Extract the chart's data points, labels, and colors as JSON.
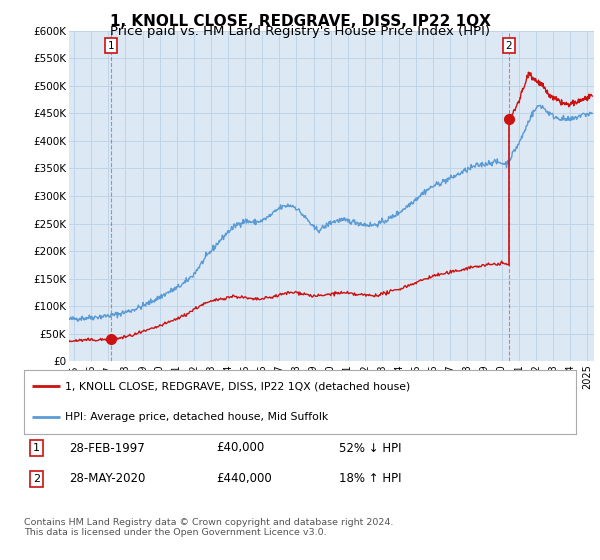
{
  "title": "1, KNOLL CLOSE, REDGRAVE, DISS, IP22 1QX",
  "subtitle": "Price paid vs. HM Land Registry's House Price Index (HPI)",
  "ylim": [
    0,
    600000
  ],
  "xlim_start": 1994.7,
  "xlim_end": 2025.4,
  "yticks": [
    0,
    50000,
    100000,
    150000,
    200000,
    250000,
    300000,
    350000,
    400000,
    450000,
    500000,
    550000,
    600000
  ],
  "ytick_labels": [
    "£0",
    "£50K",
    "£100K",
    "£150K",
    "£200K",
    "£250K",
    "£300K",
    "£350K",
    "£400K",
    "£450K",
    "£500K",
    "£550K",
    "£600K"
  ],
  "xticks": [
    1995,
    1996,
    1997,
    1998,
    1999,
    2000,
    2001,
    2002,
    2003,
    2004,
    2005,
    2006,
    2007,
    2008,
    2009,
    2010,
    2011,
    2012,
    2013,
    2014,
    2015,
    2016,
    2017,
    2018,
    2019,
    2020,
    2021,
    2022,
    2023,
    2024,
    2025
  ],
  "background_color": "#dce9f5",
  "grid_color": "#c0d4e8",
  "hpi_color": "#5b9bd5",
  "price_color": "#cc1111",
  "annotation_box_color": "#cc1111",
  "sale1_date": 1997.16,
  "sale1_price": 40000,
  "sale2_date": 2020.41,
  "sale2_price": 440000,
  "legend_entry1": "1, KNOLL CLOSE, REDGRAVE, DISS, IP22 1QX (detached house)",
  "legend_entry2": "HPI: Average price, detached house, Mid Suffolk",
  "footer": "Contains HM Land Registry data © Crown copyright and database right 2024.\nThis data is licensed under the Open Government Licence v3.0.",
  "title_fontsize": 11,
  "subtitle_fontsize": 9.5,
  "hpi_anchors": [
    [
      1994.7,
      76000
    ],
    [
      1995.0,
      77000
    ],
    [
      1995.5,
      78000
    ],
    [
      1996.0,
      79500
    ],
    [
      1996.5,
      81000
    ],
    [
      1997.0,
      82500
    ],
    [
      1997.5,
      85000
    ],
    [
      1998.0,
      89000
    ],
    [
      1998.5,
      94000
    ],
    [
      1999.0,
      100000
    ],
    [
      1999.5,
      108000
    ],
    [
      2000.0,
      116000
    ],
    [
      2000.5,
      125000
    ],
    [
      2001.0,
      133000
    ],
    [
      2001.5,
      143000
    ],
    [
      2002.0,
      158000
    ],
    [
      2002.5,
      180000
    ],
    [
      2003.0,
      200000
    ],
    [
      2003.5,
      218000
    ],
    [
      2004.0,
      235000
    ],
    [
      2004.5,
      248000
    ],
    [
      2005.0,
      255000
    ],
    [
      2005.5,
      252000
    ],
    [
      2006.0,
      255000
    ],
    [
      2006.5,
      265000
    ],
    [
      2007.0,
      278000
    ],
    [
      2007.5,
      283000
    ],
    [
      2007.8,
      282000
    ],
    [
      2008.0,
      278000
    ],
    [
      2008.3,
      268000
    ],
    [
      2008.7,
      255000
    ],
    [
      2009.0,
      242000
    ],
    [
      2009.3,
      238000
    ],
    [
      2009.7,
      245000
    ],
    [
      2010.0,
      252000
    ],
    [
      2010.5,
      256000
    ],
    [
      2011.0,
      255000
    ],
    [
      2011.5,
      252000
    ],
    [
      2012.0,
      248000
    ],
    [
      2012.5,
      247000
    ],
    [
      2013.0,
      252000
    ],
    [
      2013.5,
      260000
    ],
    [
      2014.0,
      270000
    ],
    [
      2014.5,
      282000
    ],
    [
      2015.0,
      295000
    ],
    [
      2015.5,
      308000
    ],
    [
      2016.0,
      318000
    ],
    [
      2016.5,
      325000
    ],
    [
      2017.0,
      332000
    ],
    [
      2017.5,
      340000
    ],
    [
      2018.0,
      348000
    ],
    [
      2018.5,
      355000
    ],
    [
      2019.0,
      358000
    ],
    [
      2019.5,
      362000
    ],
    [
      2020.0,
      360000
    ],
    [
      2020.3,
      358000
    ],
    [
      2020.5,
      368000
    ],
    [
      2020.7,
      380000
    ],
    [
      2021.0,
      395000
    ],
    [
      2021.3,
      415000
    ],
    [
      2021.5,
      430000
    ],
    [
      2021.7,
      445000
    ],
    [
      2022.0,
      458000
    ],
    [
      2022.2,
      465000
    ],
    [
      2022.4,
      462000
    ],
    [
      2022.6,
      455000
    ],
    [
      2022.8,
      450000
    ],
    [
      2023.0,
      445000
    ],
    [
      2023.3,
      442000
    ],
    [
      2023.6,
      440000
    ],
    [
      2023.9,
      438000
    ],
    [
      2024.2,
      440000
    ],
    [
      2024.5,
      445000
    ],
    [
      2024.8,
      448000
    ],
    [
      2025.3,
      450000
    ]
  ],
  "price_anchors_seg1": [
    [
      1994.7,
      36000
    ],
    [
      1995.0,
      37000
    ],
    [
      1995.5,
      38000
    ],
    [
      1996.0,
      38500
    ],
    [
      1996.5,
      39000
    ],
    [
      1997.0,
      39500
    ],
    [
      1997.16,
      40000
    ],
    [
      1997.5,
      41000
    ],
    [
      1998.0,
      44000
    ],
    [
      1998.5,
      48000
    ],
    [
      1999.0,
      53000
    ],
    [
      1999.5,
      58000
    ],
    [
      2000.0,
      64000
    ],
    [
      2000.5,
      70000
    ],
    [
      2001.0,
      77000
    ],
    [
      2001.5,
      84000
    ],
    [
      2002.0,
      94000
    ],
    [
      2002.5,
      103000
    ],
    [
      2003.0,
      108000
    ],
    [
      2003.5,
      113000
    ],
    [
      2004.0,
      116000
    ],
    [
      2004.3,
      118000
    ],
    [
      2004.6,
      117000
    ],
    [
      2005.0,
      115000
    ],
    [
      2005.5,
      112000
    ],
    [
      2006.0,
      113000
    ],
    [
      2006.5,
      116000
    ],
    [
      2007.0,
      120000
    ],
    [
      2007.5,
      124000
    ],
    [
      2008.0,
      125000
    ],
    [
      2008.5,
      122000
    ],
    [
      2009.0,
      118000
    ],
    [
      2009.5,
      119000
    ],
    [
      2010.0,
      122000
    ],
    [
      2010.5,
      124000
    ],
    [
      2011.0,
      123000
    ],
    [
      2011.5,
      121000
    ],
    [
      2012.0,
      120000
    ],
    [
      2012.5,
      119000
    ],
    [
      2013.0,
      122000
    ],
    [
      2013.5,
      126000
    ],
    [
      2014.0,
      131000
    ],
    [
      2014.5,
      137000
    ],
    [
      2015.0,
      143000
    ],
    [
      2015.5,
      149000
    ],
    [
      2016.0,
      155000
    ],
    [
      2016.5,
      158000
    ],
    [
      2017.0,
      161000
    ],
    [
      2017.5,
      165000
    ],
    [
      2018.0,
      169000
    ],
    [
      2018.5,
      172000
    ],
    [
      2019.0,
      174000
    ],
    [
      2019.5,
      176000
    ],
    [
      2020.0,
      178000
    ],
    [
      2020.41,
      175000
    ]
  ],
  "price_anchors_seg2": [
    [
      2020.41,
      440000
    ],
    [
      2020.6,
      445000
    ],
    [
      2020.8,
      460000
    ],
    [
      2021.0,
      472000
    ],
    [
      2021.2,
      490000
    ],
    [
      2021.4,
      505000
    ],
    [
      2021.5,
      518000
    ],
    [
      2021.6,
      525000
    ],
    [
      2021.7,
      522000
    ],
    [
      2021.8,
      515000
    ],
    [
      2022.0,
      510000
    ],
    [
      2022.2,
      505000
    ],
    [
      2022.4,
      500000
    ],
    [
      2022.6,
      490000
    ],
    [
      2022.8,
      482000
    ],
    [
      2023.0,
      478000
    ],
    [
      2023.3,
      473000
    ],
    [
      2023.6,
      468000
    ],
    [
      2023.9,
      465000
    ],
    [
      2024.2,
      468000
    ],
    [
      2024.5,
      472000
    ],
    [
      2024.8,
      476000
    ],
    [
      2025.3,
      480000
    ]
  ]
}
